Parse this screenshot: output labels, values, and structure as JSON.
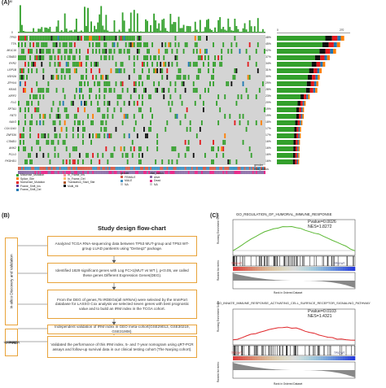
{
  "panelA": {
    "label": "(A)",
    "top_axis_max": "180",
    "top_axis_min": "0",
    "side_axis_min": "0",
    "side_axis_max": "270",
    "genes": [
      "TP53",
      "TTN",
      "MUC16",
      "CSMD3",
      "RYR2",
      "LRP1B",
      "USH2A",
      "ZFHX4",
      "KRAS",
      "XIRP2",
      "FLG",
      "SPTA1",
      "FAT3",
      "NAV3",
      "COL11A1",
      "ZNF536",
      "CSMD1",
      "ANK2",
      "PCLO",
      "PKDHD1"
    ],
    "percents": [
      "48%",
      "45%",
      "42%",
      "37%",
      "34%",
      "31%",
      "30%",
      "29%",
      "28%",
      "23%",
      "20%",
      "19%",
      "19%",
      "18%",
      "17%",
      "17%",
      "16%",
      "16%",
      "16%",
      "16%"
    ],
    "side_bar_values": [
      248,
      233,
      218,
      195,
      178,
      165,
      158,
      153,
      149,
      121,
      106,
      100,
      99,
      94,
      89,
      88,
      85,
      84,
      83,
      82
    ],
    "annot_labels": [
      "gender",
      "vital_status"
    ],
    "legend_mut_title": "",
    "legend_mut": [
      "Missense_Mutation",
      "Splice_Site",
      "Nonsense_Mutation",
      "Frame_Shift_Ins",
      "Frame_Shift_Del"
    ],
    "legend_mut2": [
      "In_Frame_Ins",
      "In_Frame_Del",
      "Translation_Start_Site",
      "Multi_Hit"
    ],
    "legend_gender_title": "gender",
    "legend_gender": [
      "FEMALE",
      "MALE",
      "NA"
    ],
    "legend_vital_title": "vital_status",
    "legend_vital": [
      "Alive",
      "Dead",
      "NA"
    ],
    "colors": {
      "missense": "#33a02c",
      "splice": "#ff7f00",
      "nonsense": "#e31a1c",
      "frame_ins": "#6a3d9a",
      "frame_del": "#1f78b4",
      "multi": "#111111",
      "female": "#d6604d",
      "male": "#4393c3",
      "alive": "#8e6fa8",
      "dead": "#e7298a"
    }
  },
  "panelB": {
    "label": "(B)",
    "title": "Study design flow-chart",
    "steps": [
      "Analyzed TCGA RNA-sequencing data between TP53 MUT-group and TP53 WT-group LUAD pantients using \"DeSeq2\" package.",
      "Identified 1829 significant genes with Log FC>1(MUT vs WT ), p<0.05, we called these genes Different Expression Genes(DEG).",
      "From the DEG of genes,75 IRDEGs(all mRNAs) were selected by the ImmPort database for LASSO Cox analysis we selected seven genes with best prognostic value and to build an IRM index in the TCGA cohort.",
      "Independent validation of IRM index in GEO meta-cohort(GSE29013, GSE30219, GSE31908).",
      "Validated the performance of this IRM index, 5- and 7-year nomogram using qRT-PCR assays and follow-up survival data in our clinical testing cohort (The Nanjing cohort)."
    ],
    "side_top": "In-silico Discovery and Validation",
    "side_bottom_l1": "Clinical",
    "side_bottom_l2": "cohort",
    "side_bottom_l3": "Validation"
  },
  "panelC": {
    "label": "(C)",
    "plots": [
      {
        "title": "GO_REGULATION_OF_HUMORAL_IMMUNE_RESPONSE",
        "pvalue": "Pvalue=0.0026",
        "nes": "NES=1.8272",
        "ylabel_top": "Running Enrichment Score",
        "ylabel_bottom": "Ranked list metric",
        "xlabel": "Rank in Ordered Dataset",
        "pos_label": "TP53 MT",
        "neg_label": "TP53 WT",
        "line_color": "#5bb833",
        "es_curve": [
          0,
          0.06,
          0.14,
          0.22,
          0.3,
          0.36,
          0.42,
          0.47,
          0.51,
          0.55,
          0.58,
          0.6,
          0.61,
          0.6,
          0.58,
          0.55,
          0.52,
          0.49,
          0.45,
          0.41,
          0.36,
          0.31,
          0.26,
          0.2,
          0.15,
          0.1,
          0.04,
          0.0
        ]
      },
      {
        "title": "GO_INNATE_IMMUNE_RESPONSE_ACTIVATING_CELL_SURFACE_RECEPTOR_SIGNALING_PATHWAY",
        "pvalue": "Pvalue=0.0103",
        "nes": "NES=1.4321",
        "ylabel_top": "Running Enrichment Score",
        "ylabel_bottom": "Ranked list metric",
        "xlabel": "Rank in Ordered Dataset",
        "pos_label": "TP53 MT",
        "neg_label": "TP53 WT",
        "line_color": "#e0262a",
        "es_curve": [
          0,
          0.03,
          0.07,
          0.11,
          0.14,
          0.17,
          0.2,
          0.23,
          0.26,
          0.28,
          0.3,
          0.31,
          0.32,
          0.31,
          0.3,
          0.27,
          0.23,
          0.2,
          0.17,
          0.13,
          0.1,
          0.07,
          0.05,
          0.03,
          0.02,
          0.01,
          0.0,
          0.0
        ]
      }
    ]
  }
}
